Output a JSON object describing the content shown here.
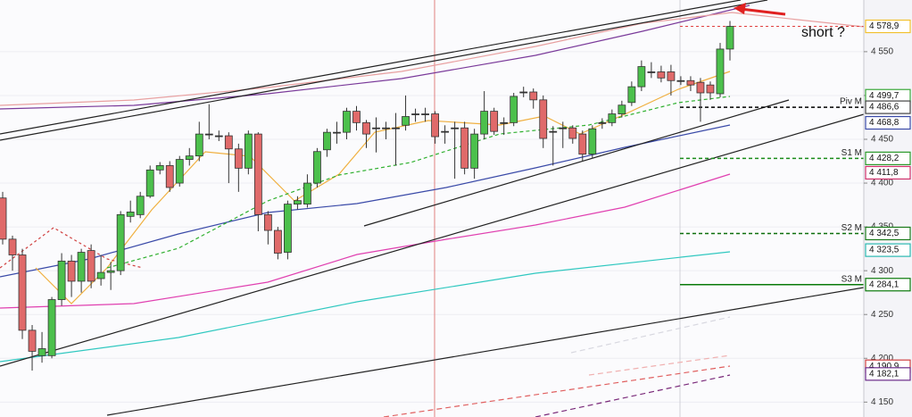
{
  "chart_data": {
    "type": "candlestick",
    "annotation": "short ?",
    "ylim": [
      4133,
      4609
    ],
    "yticks": [
      {
        "value": 4150,
        "label": "4 150"
      },
      {
        "value": 4200,
        "label": "4 200"
      },
      {
        "value": 4250,
        "label": "4 250"
      },
      {
        "value": 4300,
        "label": "4 300"
      },
      {
        "value": 4350,
        "label": "4 350"
      },
      {
        "value": 4400,
        "label": "4 400"
      },
      {
        "value": 4450,
        "label": "4 450"
      },
      {
        "value": 4500,
        "label": "4 500"
      },
      {
        "value": 4550,
        "label": "4 550"
      }
    ],
    "grid": true,
    "up_color": "#4cc04c",
    "down_color": "#e06a6a",
    "open": [
      4383,
      4336,
      4318,
      4232,
      4203,
      4203,
      4267,
      4311,
      4288,
      4323,
      4291,
      4298,
      4300,
      4362,
      4364,
      4385,
      4415,
      4420,
      4400,
      4427,
      4431,
      4456,
      4454,
      4454,
      4439,
      4417,
      4456,
      4364,
      4346,
      4321,
      4376,
      4376,
      4400,
      4438,
      4458,
      4458,
      4482,
      4469,
      4463,
      4463,
      4463,
      4466,
      4479,
      4479,
      4479,
      4459,
      4463,
      4463,
      4417,
      4456,
      4482,
      4469,
      4469,
      4504,
      4504,
      4495,
      4459,
      4463,
      4463,
      4456,
      4433,
      4469,
      4469,
      4479,
      4492,
      4510,
      4527,
      4527,
      4527,
      4517,
      4517,
      4515,
      4512,
      4502,
      4553
    ],
    "high": [
      4390,
      4340,
      4325,
      4238,
      4230,
      4270,
      4320,
      4318,
      4325,
      4330,
      4318,
      4310,
      4368,
      4380,
      4390,
      4420,
      4424,
      4425,
      4431,
      4440,
      4470,
      4490,
      4460,
      4458,
      4445,
      4460,
      4458,
      4368,
      4350,
      4380,
      4385,
      4410,
      4440,
      4462,
      4470,
      4486,
      4488,
      4472,
      4475,
      4470,
      4480,
      4500,
      4485,
      4486,
      4482,
      4466,
      4470,
      4470,
      4462,
      4505,
      4486,
      4475,
      4503,
      4510,
      4508,
      4500,
      4465,
      4470,
      4466,
      4460,
      4466,
      4474,
      4484,
      4494,
      4516,
      4540,
      4538,
      4534,
      4535,
      4522,
      4522,
      4520,
      4516,
      4560,
      4585
    ],
    "low": [
      4330,
      4300,
      4222,
      4186,
      4195,
      4200,
      4260,
      4270,
      4275,
      4280,
      4283,
      4278,
      4295,
      4355,
      4360,
      4383,
      4410,
      4390,
      4396,
      4420,
      4425,
      4450,
      4448,
      4400,
      4390,
      4410,
      4345,
      4330,
      4313,
      4313,
      4370,
      4372,
      4395,
      4430,
      4445,
      4450,
      4460,
      4440,
      4435,
      4450,
      4420,
      4460,
      4470,
      4470,
      4445,
      4445,
      4405,
      4410,
      4405,
      4450,
      4455,
      4455,
      4465,
      4498,
      4485,
      4440,
      4420,
      4440,
      4445,
      4425,
      4428,
      4462,
      4465,
      4475,
      4488,
      4505,
      4520,
      4515,
      4500,
      4512,
      4505,
      4470,
      4495,
      4498,
      4540
    ],
    "close": [
      4336,
      4318,
      4232,
      4208,
      4211,
      4267,
      4311,
      4288,
      4321,
      4288,
      4298,
      4300,
      4364,
      4367,
      4385,
      4415,
      4420,
      4395,
      4427,
      4431,
      4456,
      4456,
      4454,
      4439,
      4417,
      4456,
      4364,
      4346,
      4320,
      4376,
      4380,
      4400,
      4436,
      4458,
      4458,
      4482,
      4469,
      4456,
      4463,
      4463,
      4463,
      4476,
      4479,
      4479,
      4453,
      4459,
      4463,
      4417,
      4456,
      4482,
      4459,
      4469,
      4499,
      4504,
      4495,
      4451,
      4459,
      4463,
      4451,
      4433,
      4462,
      4469,
      4479,
      4489,
      4510,
      4533,
      4527,
      4520,
      4517,
      4517,
      4512,
      4503,
      4503,
      4553,
      4578.9
    ],
    "pivots": [
      {
        "name": "Piv M",
        "value": 4486.6,
        "color": "#000000"
      },
      {
        "name": "S1 M",
        "value": 4428.2,
        "color": "#1a8c1a"
      },
      {
        "name": "S2 M",
        "value": 4342.5,
        "color": "#0d6e0d"
      },
      {
        "name": "S3 M",
        "value": 4284.1,
        "color": "#0a7a0a"
      }
    ],
    "price_labels": [
      {
        "value": 4578.9,
        "label": "4 578,9",
        "color": "#f2c12e"
      },
      {
        "value": 4499.7,
        "label": "4 499,7",
        "color": "#3aa83a"
      },
      {
        "value": 4486.6,
        "label": "4 486,6",
        "color": "#444444"
      },
      {
        "value": 4468.8,
        "label": "4 468,8",
        "color": "#3a4aa8"
      },
      {
        "value": 4428.2,
        "label": "4 428,2",
        "color": "#2a9a2a"
      },
      {
        "value": 4411.8,
        "label": "4 411,8",
        "color": "#d0306a"
      },
      {
        "value": 4342.5,
        "label": "4 342,5",
        "color": "#1a7a1a"
      },
      {
        "value": 4323.5,
        "label": "4 323,5",
        "color": "#2ab8b0"
      },
      {
        "value": 4284.1,
        "label": "4 284,1",
        "color": "#0a7a0a"
      },
      {
        "value": 4190.9,
        "label": "4 190,9",
        "color": "#d04040"
      },
      {
        "value": 4182.1,
        "label": "4 182,1",
        "color": "#6a2a8a"
      }
    ]
  }
}
